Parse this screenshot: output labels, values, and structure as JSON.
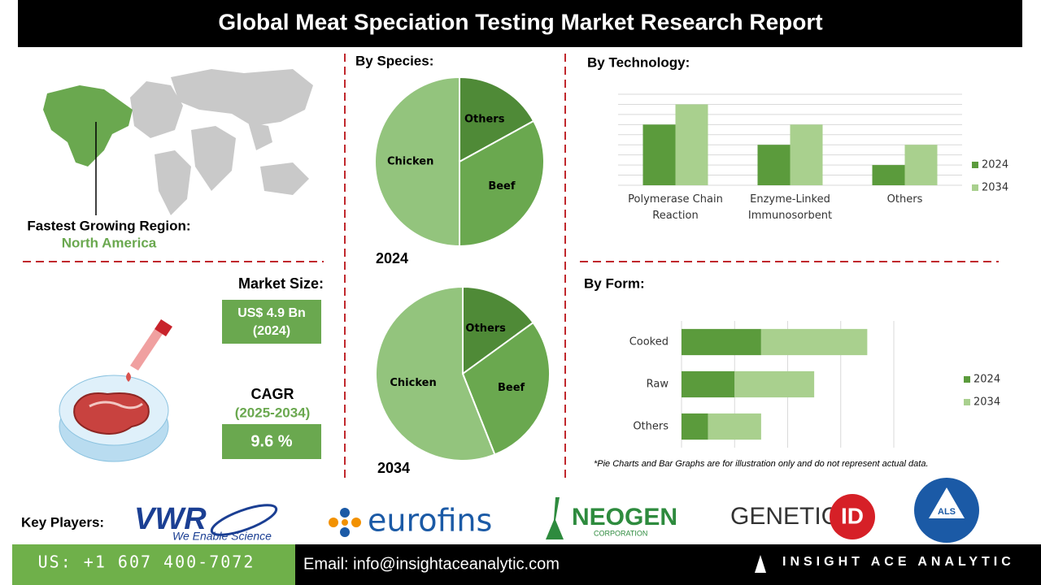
{
  "header": {
    "title": "Global Meat Speciation Testing Market Research Report"
  },
  "region": {
    "label": "Fastest Growing Region:",
    "value": "North America"
  },
  "market_size": {
    "label": "Market Size:",
    "value": "US$ 4.9 Bn",
    "year": "(2024)"
  },
  "cagr": {
    "label": "CAGR",
    "period": "(2025-2034)",
    "value": "9.6 %"
  },
  "sections": {
    "species": "By Species:",
    "technology": "By Technology:",
    "form": "By Form:"
  },
  "note": "*Pie Charts and Bar Graphs are for illustration only and do not represent actual data.",
  "key_players": {
    "label": "Key Players:",
    "vwr": {
      "name": "VWR",
      "tagline": "We Enable Science"
    },
    "eurofins": "eurofins",
    "neogen": {
      "name": "NEOGEN",
      "sub": "CORPORATION"
    },
    "genetic_id": {
      "name": "GENETIC",
      "mark": "ID"
    },
    "als": "ALS"
  },
  "footer": {
    "phone": "US: +1 607 400-7072",
    "email": "Email: info@insightaceanalytic.com",
    "brand": "INSIGHT ACE ANALYTIC"
  },
  "chart_data": [
    {
      "type": "pie",
      "title": "2024",
      "categories": [
        "Others",
        "Beef",
        "Chicken"
      ],
      "values": [
        17,
        33,
        50
      ],
      "colors": [
        "#4f8a37",
        "#6aa84f",
        "#93c47d"
      ]
    },
    {
      "type": "pie",
      "title": "2034",
      "categories": [
        "Others",
        "Beef",
        "Chicken"
      ],
      "values": [
        15,
        29,
        56
      ],
      "colors": [
        "#4f8a37",
        "#6aa84f",
        "#93c47d"
      ]
    },
    {
      "type": "bar",
      "categories": [
        "Polymerase Chain Reaction",
        "Enzyme-Linked Immunosorbent",
        "Others"
      ],
      "series": [
        {
          "name": "2024",
          "color": "#5b9b3c",
          "values": [
            6,
            4,
            2
          ]
        },
        {
          "name": "2034",
          "color": "#a9d08e",
          "values": [
            8,
            6,
            4
          ]
        }
      ],
      "ylim": [
        0,
        9
      ],
      "yticks": [
        0,
        1,
        2,
        3,
        4,
        5,
        6,
        7,
        8,
        9
      ],
      "grid": true,
      "legend": "right"
    },
    {
      "type": "bar",
      "orientation": "horizontal",
      "stacked": true,
      "categories": [
        "Cooked",
        "Raw",
        "Others"
      ],
      "series": [
        {
          "name": "2024",
          "color": "#5b9b3c",
          "values": [
            1.5,
            1,
            0.5
          ]
        },
        {
          "name": "2034",
          "color": "#a9d08e",
          "values": [
            2,
            1.5,
            1
          ]
        }
      ],
      "xlim": [
        0,
        4
      ],
      "xticks": [
        0,
        1,
        2,
        3,
        4
      ],
      "grid": true,
      "legend": "right"
    }
  ]
}
